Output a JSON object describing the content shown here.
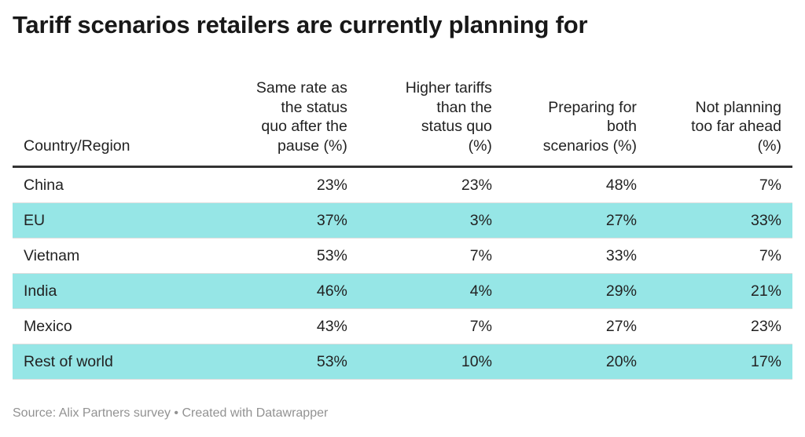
{
  "title": "Tariff scenarios retailers are currently planning for",
  "footer": "Source: Alix Partners survey • Created with Datawrapper",
  "colors": {
    "highlight_row": "#96e6e6",
    "header_rule": "#333333"
  },
  "chart_data": {
    "type": "table",
    "title": "Tariff scenarios retailers are currently planning for",
    "columns": [
      "Country/Region",
      "Same rate as the status quo after the pause (%)",
      "Higher tariffs than the status quo (%)",
      "Preparing for both scenarios (%)",
      "Not planning too far ahead (%)"
    ],
    "rows": [
      {
        "cells": [
          "China",
          "23%",
          "23%",
          "48%",
          "7%"
        ],
        "highlight": false
      },
      {
        "cells": [
          "EU",
          "37%",
          "3%",
          "27%",
          "33%"
        ],
        "highlight": true
      },
      {
        "cells": [
          "Vietnam",
          "53%",
          "7%",
          "33%",
          "7%"
        ],
        "highlight": false
      },
      {
        "cells": [
          "India",
          "46%",
          "4%",
          "29%",
          "21%"
        ],
        "highlight": true
      },
      {
        "cells": [
          "Mexico",
          "43%",
          "7%",
          "27%",
          "23%"
        ],
        "highlight": false
      },
      {
        "cells": [
          "Rest of world",
          "53%",
          "10%",
          "20%",
          "17%"
        ],
        "highlight": true
      }
    ]
  }
}
